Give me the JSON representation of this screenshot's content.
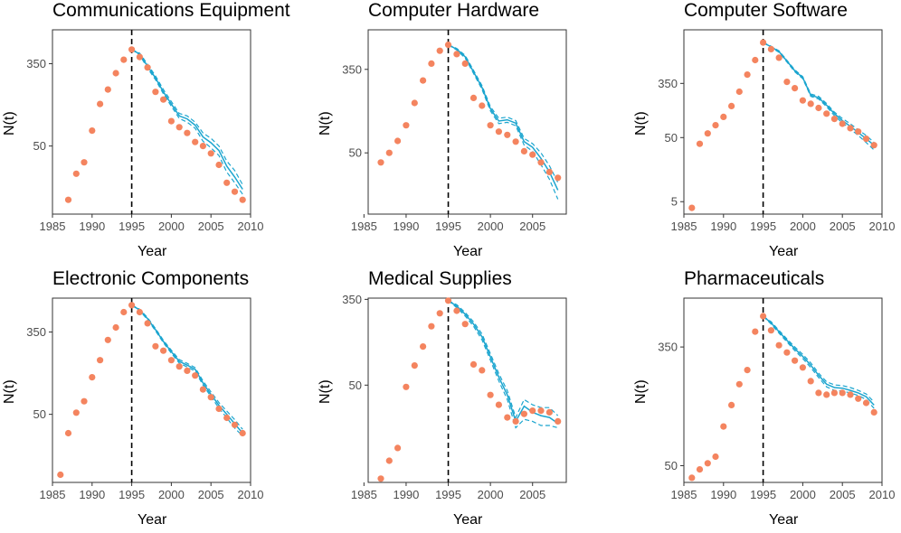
{
  "figure": {
    "colors": {
      "observed": "#F4845F",
      "predicted": "#1BA5CF",
      "vline": "#000000",
      "axis": "#333333"
    },
    "cutoff_year": 1995
  },
  "chart_data": [
    {
      "type": "scatter",
      "title": "Communications Equipment",
      "xlabel": "Year",
      "ylabel": "N(t)",
      "xlim": [
        1985,
        2010
      ],
      "xticks": [
        1985,
        1990,
        1995,
        2000,
        2005,
        2010
      ],
      "xtick_labels": [
        "1985",
        "1990",
        "1995",
        "2000",
        "2005",
        "2010"
      ],
      "ylim": [
        10,
        780
      ],
      "yticks": [
        50,
        350
      ],
      "ytick_labels": [
        "50",
        "350"
      ],
      "observed": {
        "x": [
          1987,
          1988,
          1989,
          1990,
          1991,
          1992,
          1993,
          1994,
          1995,
          1996,
          1997,
          1998,
          1999,
          2000,
          2001,
          2002,
          2003,
          2004,
          2005,
          2006,
          2007,
          2008,
          2009
        ],
        "y": [
          14,
          26,
          34,
          72,
          135,
          190,
          280,
          385,
          490,
          410,
          320,
          180,
          150,
          90,
          78,
          68,
          55,
          50,
          42,
          32,
          21,
          17,
          14
        ]
      },
      "predicted": {
        "x": [
          1995,
          1996,
          1997,
          1998,
          1999,
          2000,
          2001,
          2002,
          2003,
          2004,
          2005,
          2006,
          2007,
          2008,
          2009
        ],
        "mid": [
          490,
          440,
          330,
          250,
          180,
          135,
          102,
          95,
          82,
          62,
          54,
          45,
          31,
          24,
          18
        ],
        "lo": [
          490,
          430,
          315,
          240,
          172,
          128,
          96,
          88,
          76,
          56,
          48,
          40,
          27,
          21,
          16
        ],
        "hi": [
          490,
          450,
          345,
          262,
          190,
          143,
          108,
          102,
          88,
          68,
          60,
          50,
          35,
          28,
          20
        ]
      }
    },
    {
      "type": "scatter",
      "title": "Computer Hardware",
      "xlabel": "Year",
      "ylabel": "N(t)",
      "xlim": [
        1985.5,
        2009
      ],
      "xticks": [
        1985,
        1990,
        1995,
        2000,
        2005
      ],
      "xtick_labels": [
        "1985",
        "1990",
        "1995",
        "2000",
        "2005"
      ],
      "ylim": [
        12,
        880
      ],
      "yticks": [
        50,
        350
      ],
      "ytick_labels": [
        "50",
        "350"
      ],
      "observed": {
        "x": [
          1987,
          1988,
          1989,
          1990,
          1991,
          1992,
          1993,
          1994,
          1995,
          1996,
          1997,
          1998,
          1999,
          2000,
          2001,
          2002,
          2003,
          2004,
          2005,
          2006,
          2007,
          2008
        ],
        "y": [
          40,
          50,
          66,
          95,
          160,
          270,
          400,
          540,
          620,
          500,
          400,
          180,
          150,
          95,
          82,
          76,
          65,
          52,
          48,
          40,
          32,
          28
        ]
      },
      "predicted": {
        "x": [
          1995,
          1996,
          1997,
          1998,
          1999,
          2000,
          2001,
          2002,
          2003,
          2004,
          2005,
          2006,
          2007,
          2008
        ],
        "mid": [
          620,
          560,
          470,
          330,
          230,
          140,
          105,
          108,
          100,
          65,
          57,
          44,
          32,
          21
        ],
        "lo": [
          620,
          550,
          455,
          318,
          220,
          133,
          99,
          102,
          94,
          60,
          52,
          38,
          27,
          17
        ],
        "hi": [
          620,
          570,
          485,
          342,
          240,
          147,
          112,
          115,
          106,
          70,
          62,
          50,
          37,
          25
        ]
      }
    },
    {
      "type": "scatter",
      "title": "Computer Software",
      "xlabel": "Year",
      "ylabel": "N(t)",
      "xlim": [
        1985,
        2010
      ],
      "xticks": [
        1985,
        1990,
        1995,
        2000,
        2005,
        2010
      ],
      "xtick_labels": [
        "1985",
        "1990",
        "1995",
        "2000",
        "2005",
        "2010"
      ],
      "ylim": [
        3.2,
        2400
      ],
      "yticks": [
        5,
        50,
        350
      ],
      "ytick_labels": [
        "5",
        "50",
        "350"
      ],
      "observed": {
        "x": [
          1986,
          1987,
          1988,
          1989,
          1990,
          1991,
          1992,
          1993,
          1994,
          1995,
          1996,
          1997,
          1998,
          1999,
          2000,
          2001,
          2002,
          2003,
          2004,
          2005,
          2006,
          2007,
          2008,
          2009
        ],
        "y": [
          4,
          40,
          58,
          78,
          105,
          155,
          260,
          480,
          810,
          1520,
          1200,
          880,
          370,
          295,
          190,
          168,
          145,
          118,
          98,
          82,
          70,
          62,
          48,
          38
        ]
      },
      "predicted": {
        "x": [
          1995,
          1996,
          1997,
          1998,
          1999,
          2000,
          2001,
          2002,
          2003,
          2004,
          2005,
          2006,
          2007,
          2008,
          2009
        ],
        "mid": [
          1520,
          1300,
          1100,
          780,
          550,
          430,
          230,
          210,
          160,
          118,
          92,
          75,
          60,
          48,
          38
        ],
        "lo": [
          1520,
          1270,
          1070,
          755,
          530,
          415,
          220,
          200,
          152,
          110,
          85,
          68,
          54,
          42,
          32
        ],
        "hi": [
          1520,
          1330,
          1130,
          805,
          570,
          445,
          240,
          220,
          170,
          125,
          99,
          82,
          66,
          54,
          42
        ]
      }
    },
    {
      "type": "scatter",
      "title": "Electronic Components",
      "xlabel": "Year",
      "ylabel": "N(t)",
      "xlim": [
        1985,
        2010
      ],
      "xticks": [
        1985,
        1990,
        1995,
        2000,
        2005,
        2010
      ],
      "xtick_labels": [
        "1985",
        "1990",
        "1995",
        "2000",
        "2005",
        "2010"
      ],
      "ylim": [
        10,
        780
      ],
      "yticks": [
        50,
        350
      ],
      "ytick_labels": [
        "50",
        "350"
      ],
      "observed": {
        "x": [
          1986,
          1987,
          1988,
          1989,
          1990,
          1991,
          1992,
          1993,
          1994,
          1995,
          1996,
          1997,
          1998,
          1999,
          2000,
          2001,
          2002,
          2003,
          2004,
          2005,
          2006,
          2007,
          2008,
          2009
        ],
        "y": [
          12,
          32,
          52,
          68,
          120,
          180,
          290,
          390,
          560,
          660,
          560,
          430,
          250,
          225,
          180,
          155,
          140,
          125,
          90,
          75,
          57,
          46,
          39,
          32
        ]
      },
      "predicted": {
        "x": [
          1995,
          1996,
          1997,
          1998,
          1999,
          2000,
          2001,
          2002,
          2003,
          2004,
          2005,
          2006,
          2007,
          2008,
          2009
        ],
        "mid": [
          660,
          590,
          480,
          370,
          280,
          220,
          175,
          160,
          145,
          105,
          80,
          62,
          50,
          40,
          32
        ],
        "lo": [
          660,
          580,
          468,
          360,
          272,
          212,
          168,
          153,
          139,
          100,
          76,
          58,
          46,
          36,
          30
        ],
        "hi": [
          660,
          600,
          492,
          380,
          288,
          228,
          182,
          167,
          151,
          110,
          85,
          66,
          54,
          44,
          35
        ]
      }
    },
    {
      "type": "scatter",
      "title": "Medical Supplies",
      "xlabel": "Year",
      "ylabel": "N(t)",
      "xlim": [
        1985.5,
        2009
      ],
      "xticks": [
        1985,
        1990,
        1995,
        2000,
        2005
      ],
      "xtick_labels": [
        "1985",
        "1990",
        "1995",
        "2000",
        "2005"
      ],
      "ylim": [
        5.5,
        360
      ],
      "yticks": [
        50,
        350
      ],
      "ytick_labels": [
        "50",
        "350"
      ],
      "observed": {
        "x": [
          1987,
          1988,
          1989,
          1990,
          1991,
          1992,
          1993,
          1994,
          1995,
          1996,
          1997,
          1998,
          1999,
          2000,
          2001,
          2002,
          2003,
          2004,
          2005,
          2006,
          2007,
          2008
        ],
        "y": [
          6,
          9,
          12,
          48,
          78,
          120,
          190,
          255,
          340,
          270,
          200,
          80,
          70,
          40,
          32,
          24,
          22,
          26,
          28,
          28,
          27,
          22
        ]
      },
      "predicted": {
        "x": [
          1995,
          1996,
          1997,
          1998,
          1999,
          2000,
          2001,
          2002,
          2003,
          2004,
          2005,
          2006,
          2007,
          2008
        ],
        "mid": [
          340,
          300,
          250,
          200,
          150,
          95,
          60,
          40,
          22,
          31,
          27,
          25,
          24,
          21
        ],
        "lo": [
          340,
          290,
          240,
          190,
          140,
          88,
          55,
          36,
          19,
          23,
          22,
          20,
          20,
          19
        ],
        "hi": [
          340,
          310,
          260,
          210,
          160,
          102,
          65,
          44,
          24,
          36,
          32,
          30,
          30,
          25
        ]
      }
    },
    {
      "type": "scatter",
      "title": "Pharmaceuticals",
      "xlabel": "Year",
      "ylabel": "N(t)",
      "xlim": [
        1985,
        2010
      ],
      "xticks": [
        1985,
        1990,
        1995,
        2000,
        2005,
        2010
      ],
      "xtick_labels": [
        "1985",
        "1990",
        "1995",
        "2000",
        "2005",
        "2010"
      ],
      "ylim": [
        38,
        780
      ],
      "yticks": [
        50,
        350
      ],
      "ytick_labels": [
        "50",
        "350"
      ],
      "observed": {
        "x": [
          1986,
          1987,
          1988,
          1989,
          1990,
          1991,
          1992,
          1993,
          1994,
          1995,
          1996,
          1997,
          1998,
          1999,
          2000,
          2001,
          2002,
          2003,
          2004,
          2005,
          2006,
          2007,
          2008,
          2009
        ],
        "y": [
          41,
          47,
          52,
          58,
          95,
          135,
          190,
          240,
          450,
          580,
          460,
          360,
          320,
          280,
          250,
          200,
          165,
          160,
          165,
          165,
          160,
          150,
          140,
          120
        ]
      },
      "predicted": {
        "x": [
          1995,
          1996,
          1997,
          1998,
          1999,
          2000,
          2001,
          2002,
          2003,
          2004,
          2005,
          2006,
          2007,
          2008,
          2009
        ],
        "mid": [
          580,
          520,
          450,
          390,
          340,
          300,
          260,
          220,
          190,
          180,
          178,
          172,
          165,
          155,
          135
        ],
        "lo": [
          580,
          510,
          440,
          380,
          330,
          290,
          250,
          212,
          182,
          172,
          170,
          165,
          158,
          148,
          128
        ],
        "hi": [
          580,
          530,
          460,
          400,
          350,
          310,
          270,
          228,
          198,
          188,
          186,
          180,
          172,
          162,
          142
        ]
      }
    }
  ]
}
